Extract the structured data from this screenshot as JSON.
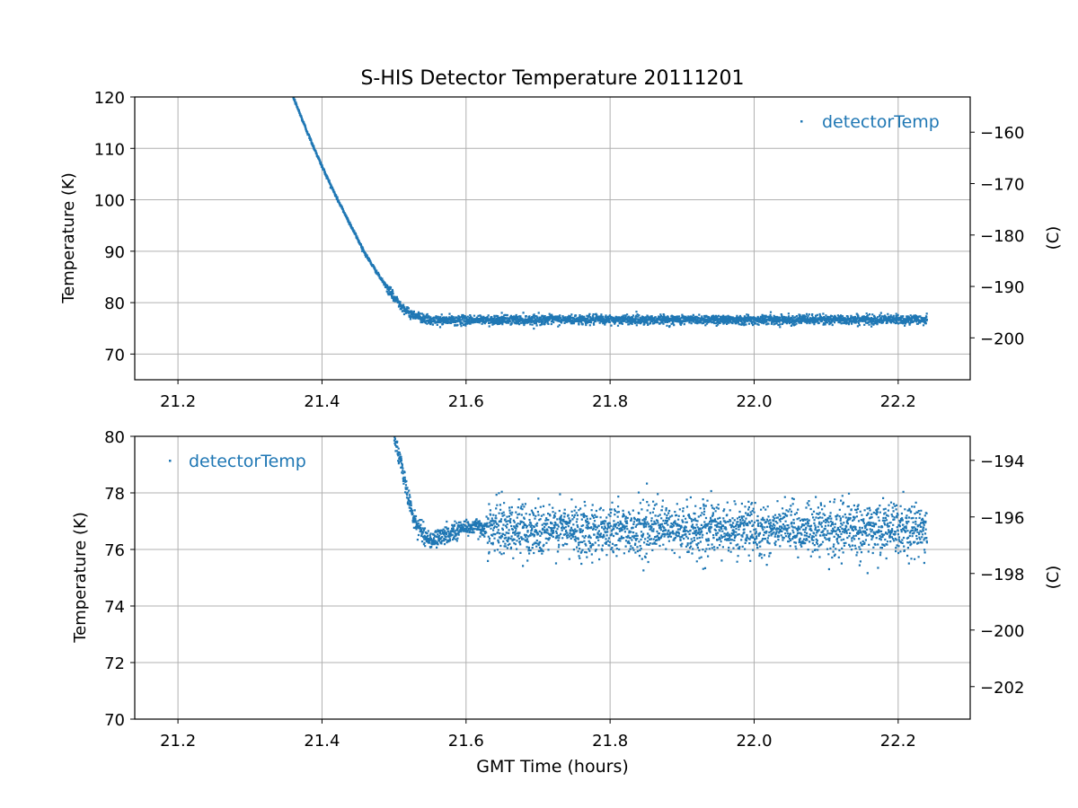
{
  "chart_data": [
    {
      "type": "scatter",
      "title": "S-HIS Detector Temperature 20111201",
      "xlabel": "",
      "ylabel": "Temperature (K)",
      "y2label": "(C)",
      "xlim": [
        21.14,
        22.3
      ],
      "ylim": [
        65,
        120
      ],
      "y2lim": [
        -208.15,
        -153.15
      ],
      "x_ticks": [
        "21.2",
        "21.4",
        "21.6",
        "21.8",
        "22.0",
        "22.2"
      ],
      "y_ticks": [
        "70",
        "80",
        "90",
        "100",
        "110",
        "120"
      ],
      "y2_ticks": [
        "−200",
        "−190",
        "−180",
        "−170",
        "−160"
      ],
      "grid": true,
      "legend": {
        "position": "top-right",
        "entries": [
          "detectorTemp"
        ]
      },
      "color": "#1f77b4",
      "series": [
        {
          "name": "detectorTemp",
          "x": [
            21.36,
            21.38,
            21.4,
            21.42,
            21.44,
            21.46,
            21.48,
            21.5,
            21.52,
            21.55,
            21.6,
            21.7,
            21.8,
            21.9,
            22.0,
            22.1,
            22.2,
            22.24
          ],
          "y": [
            120.0,
            113.0,
            106.5,
            100.5,
            95.0,
            89.5,
            85.0,
            81.0,
            78.0,
            76.5,
            76.6,
            76.7,
            76.7,
            76.7,
            76.7,
            76.7,
            76.7,
            76.7
          ],
          "start_x": 21.36,
          "end_x": 22.24,
          "noise_std_K": 0.45,
          "n_points": 3300
        }
      ]
    },
    {
      "type": "scatter",
      "title": "",
      "xlabel": "GMT Time (hours)",
      "ylabel": "Temperature (K)",
      "y2label": "(C)",
      "xlim": [
        21.14,
        22.3
      ],
      "ylim": [
        70,
        80
      ],
      "y2lim": [
        -203.15,
        -193.15
      ],
      "x_ticks": [
        "21.2",
        "21.4",
        "21.6",
        "21.8",
        "22.0",
        "22.2"
      ],
      "y_ticks": [
        "70",
        "72",
        "74",
        "76",
        "78",
        "80"
      ],
      "y2_ticks": [
        "−202",
        "−200",
        "−198",
        "−196",
        "−194"
      ],
      "grid": true,
      "legend": {
        "position": "top-left",
        "entries": [
          "detectorTemp"
        ]
      },
      "color": "#1f77b4",
      "series": [
        {
          "name": "detectorTemp",
          "x": [
            21.5,
            21.51,
            21.52,
            21.53,
            21.55,
            21.57,
            21.6,
            21.7,
            21.8,
            21.9,
            22.0,
            22.1,
            22.2,
            22.24
          ],
          "y": [
            80.0,
            79.0,
            77.8,
            76.9,
            76.3,
            76.5,
            76.8,
            76.7,
            76.7,
            76.7,
            76.7,
            76.7,
            76.7,
            76.7
          ],
          "start_x": 21.5,
          "end_x": 22.24,
          "noise_std_K": 0.45,
          "n_points": 2800
        }
      ]
    }
  ]
}
